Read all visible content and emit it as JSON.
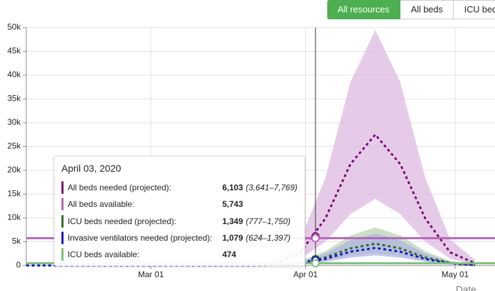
{
  "chart_data": {
    "type": "projection",
    "buttons": [
      "All resources",
      "All beds",
      "ICU beds"
    ],
    "x_label": "Date",
    "x": [
      "2020-02-05",
      "2020-02-10",
      "2020-02-15",
      "2020-02-20",
      "2020-02-25",
      "2020-03-01",
      "2020-03-06",
      "2020-03-11",
      "2020-03-16",
      "2020-03-21",
      "2020-03-26",
      "2020-03-31",
      "2020-04-05",
      "2020-04-10",
      "2020-04-15",
      "2020-04-20",
      "2020-04-25",
      "2020-04-30",
      "2020-05-05"
    ],
    "xlim": [
      "2020-02-05",
      "2020-05-09"
    ],
    "xticks": [
      {
        "value": "2020-03-01",
        "label": "Mar 01"
      },
      {
        "value": "2020-04-01",
        "label": "Apr 01"
      },
      {
        "value": "2020-05-01",
        "label": "May 01"
      }
    ],
    "ylim": [
      0,
      50000
    ],
    "yticks": [
      {
        "value": 0,
        "label": "0"
      },
      {
        "value": 5000,
        "label": "5k"
      },
      {
        "value": 10000,
        "label": "10k"
      },
      {
        "value": 15000,
        "label": "15k"
      },
      {
        "value": 20000,
        "label": "20k"
      },
      {
        "value": 25000,
        "label": "25k"
      },
      {
        "value": 30000,
        "label": "30k"
      },
      {
        "value": 35000,
        "label": "35k"
      },
      {
        "value": 40000,
        "label": "40k"
      },
      {
        "value": 45000,
        "label": "45k"
      },
      {
        "value": 50000,
        "label": "50k"
      }
    ],
    "grid": true,
    "hover": {
      "x": "2020-04-03",
      "title": "April 03, 2020"
    },
    "series": [
      {
        "name": "All beds needed (projected):",
        "kind": "projection",
        "color": "#7a0a6f",
        "band_color": "#dbb5e0",
        "values": [
          0,
          0,
          0,
          0,
          0,
          0,
          0,
          0,
          3,
          47,
          464,
          2770,
          9900,
          21300,
          27500,
          21300,
          9900,
          2770,
          464
        ],
        "lower": [
          0,
          0,
          0,
          0,
          0,
          0,
          0,
          0,
          0,
          5,
          250,
          1400,
          5000,
          10800,
          14000,
          10800,
          5000,
          1400,
          250
        ],
        "upper": [
          0,
          0,
          0,
          0,
          0,
          0,
          0,
          0,
          10,
          150,
          1200,
          5500,
          18500,
          38500,
          49500,
          38500,
          18500,
          5500,
          1200
        ],
        "hover_value": 6103,
        "hover_label": "6,103",
        "hover_range": "(3,641–7,769)"
      },
      {
        "name": "All beds available:",
        "kind": "level",
        "color": "#b663b8",
        "value": 5743,
        "hover_label": "5,743"
      },
      {
        "name": "ICU beds needed (projected):",
        "kind": "projection",
        "color": "#2a6e22",
        "band_color": "#b3d3ad",
        "values": [
          0,
          0,
          0,
          0,
          0,
          0,
          0,
          0,
          0,
          10,
          90,
          550,
          1700,
          3600,
          4600,
          3600,
          1700,
          550,
          90
        ],
        "lower": [
          0,
          0,
          0,
          0,
          0,
          0,
          0,
          0,
          0,
          5,
          50,
          310,
          960,
          2000,
          2600,
          2000,
          960,
          310,
          50
        ],
        "upper": [
          0,
          0,
          0,
          0,
          0,
          0,
          0,
          0,
          0,
          20,
          160,
          950,
          3000,
          6300,
          8000,
          6300,
          3000,
          950,
          160
        ],
        "hover_value": 1349,
        "hover_label": "1,349",
        "hover_range": "(777–1,750)"
      },
      {
        "name": "Invasive ventilators needed (projected):",
        "kind": "projection",
        "color": "#1515c8",
        "band_color": "#b0b0e6",
        "values": [
          0,
          0,
          0,
          0,
          0,
          0,
          0,
          0,
          0,
          8,
          70,
          440,
          1370,
          2900,
          3700,
          2900,
          1370,
          440,
          70
        ],
        "lower": [
          0,
          0,
          0,
          0,
          0,
          0,
          0,
          0,
          0,
          4,
          40,
          250,
          780,
          1650,
          2100,
          1650,
          780,
          250,
          40
        ],
        "upper": [
          0,
          0,
          0,
          0,
          0,
          0,
          0,
          0,
          0,
          15,
          130,
          800,
          2500,
          5300,
          6700,
          5300,
          2500,
          800,
          130
        ],
        "hover_value": 1079,
        "hover_label": "1,079",
        "hover_range": "(624–1,397)"
      },
      {
        "name": "ICU beds available:",
        "kind": "level",
        "color": "#7cbf7a",
        "value": 474,
        "hover_label": "474"
      }
    ]
  }
}
